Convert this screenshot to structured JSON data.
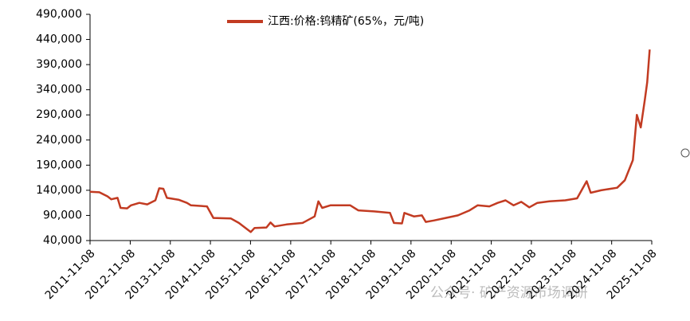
{
  "chart_data": {
    "type": "line",
    "watermark": "公众号· 矿产资源市场调研",
    "x": [
      "2011-11-08",
      "2012-02-01",
      "2012-04-15",
      "2012-05-20",
      "2012-07-15",
      "2012-08-12",
      "2012-10-10",
      "2012-11-15",
      "2013-01-30",
      "2013-04-12",
      "2013-06-25",
      "2013-07-30",
      "2013-09-05",
      "2013-10-08",
      "2014-01-26",
      "2014-04-08",
      "2014-05-15",
      "2014-10-08",
      "2014-12-05",
      "2015-05-12",
      "2015-07-25",
      "2015-11-10",
      "2015-12-15",
      "2016-04-01",
      "2016-05-08",
      "2016-06-14",
      "2016-10-01",
      "2017-02-24",
      "2017-06-14",
      "2017-07-18",
      "2017-08-22",
      "2017-11-04",
      "2018-05-04",
      "2018-07-16",
      "2018-12-06",
      "2019-05-01",
      "2019-06-06",
      "2019-08-18",
      "2019-09-09",
      "2019-12-05",
      "2020-02-15",
      "2020-03-22",
      "2020-06-03",
      "2020-09-20",
      "2021-01-08",
      "2021-04-25",
      "2021-07-06",
      "2021-10-22",
      "2022-01-05",
      "2022-03-18",
      "2022-05-30",
      "2022-08-08",
      "2022-10-20",
      "2023-01-01",
      "2023-04-20",
      "2023-09-12",
      "2023-12-29",
      "2024-03-25",
      "2024-05-01",
      "2024-08-04",
      "2024-12-28",
      "2025-03-08",
      "2025-05-20",
      "2025-06-25",
      "2025-07-31",
      "2025-09-06",
      "2025-09-28",
      "2025-10-20"
    ],
    "series": [
      {
        "name": "江西:价格:钨精矿(65%，元/吨)",
        "color": "#c23b22",
        "values": [
          137000,
          136000,
          128000,
          122000,
          125000,
          105000,
          104000,
          110000,
          115000,
          112000,
          120000,
          144000,
          143000,
          125000,
          121000,
          115000,
          110000,
          108000,
          85000,
          84000,
          75000,
          57000,
          65000,
          66000,
          76000,
          68000,
          72000,
          75000,
          88000,
          118000,
          105000,
          110000,
          110000,
          100000,
          98000,
          95000,
          75000,
          74000,
          95000,
          88000,
          90000,
          77000,
          80000,
          85000,
          90000,
          100000,
          110000,
          108000,
          115000,
          120000,
          110000,
          117000,
          106000,
          115000,
          118000,
          120000,
          124000,
          158000,
          135000,
          140000,
          145000,
          160000,
          200000,
          290000,
          265000,
          320000,
          355000,
          420000
        ]
      }
    ],
    "xlim": [
      "2011-11-08",
      "2025-11-08"
    ],
    "xticks": [
      "2011-11-08",
      "2012-11-08",
      "2013-11-08",
      "2014-11-08",
      "2015-11-08",
      "2016-11-08",
      "2017-11-08",
      "2018-11-08",
      "2019-11-08",
      "2020-11-08",
      "2021-11-08",
      "2022-11-08",
      "2023-11-08",
      "2024-11-08",
      "2025-11-08"
    ],
    "ylim": [
      40000,
      490000
    ],
    "yticks": [
      {
        "value": 40000,
        "label": "40,000"
      },
      {
        "value": 90000,
        "label": "90,000"
      },
      {
        "value": 140000,
        "label": "140,000"
      },
      {
        "value": 190000,
        "label": "190,000"
      },
      {
        "value": 240000,
        "label": "240,000"
      },
      {
        "value": 290000,
        "label": "290,000"
      },
      {
        "value": 340000,
        "label": "340,000"
      },
      {
        "value": 390000,
        "label": "390,000"
      },
      {
        "value": 440000,
        "label": "440,000"
      },
      {
        "value": 490000,
        "label": "490,000"
      }
    ]
  }
}
